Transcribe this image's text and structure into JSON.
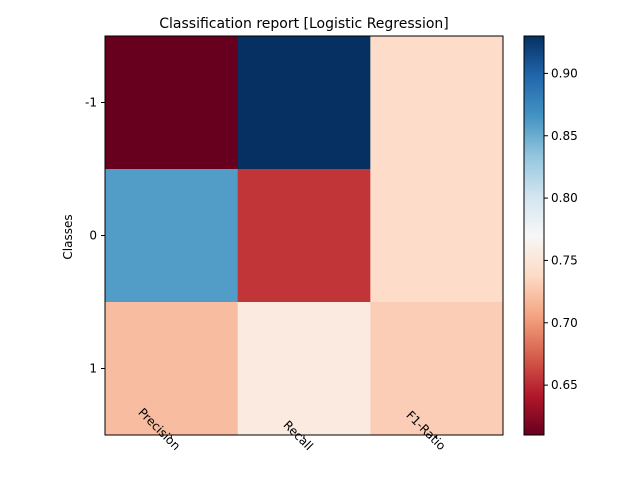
{
  "chart_data": {
    "type": "heatmap",
    "title": "Classification report  [Logistic Regression]",
    "xlabel": "",
    "ylabel": "Classes",
    "x_tick_labels": [
      "Precision",
      "Recall",
      "F1-Ratio"
    ],
    "y_tick_labels": [
      "-1",
      "0",
      "1"
    ],
    "values": [
      [
        0.61,
        0.93,
        0.74
      ],
      [
        0.86,
        0.655,
        0.74
      ],
      [
        0.72,
        0.755,
        0.73
      ]
    ],
    "colormap": "RdBu",
    "colorbar": {
      "min": 0.61,
      "max": 0.93,
      "ticks": [
        0.65,
        0.7,
        0.75,
        0.8,
        0.85,
        0.9
      ],
      "tick_labels": [
        "0.65",
        "0.70",
        "0.75",
        "0.80",
        "0.85",
        "0.90"
      ]
    },
    "grid": false,
    "x_tick_rotation": 45
  }
}
